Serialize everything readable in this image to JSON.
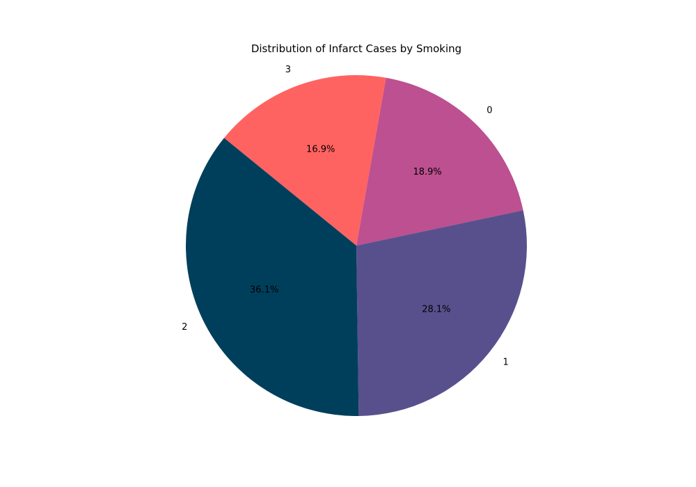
{
  "chart_data": {
    "type": "pie",
    "title": "Distribution of Infarct Cases by Smoking",
    "slices": [
      {
        "label": "0",
        "value": 18.9,
        "pct_label": "18.9%",
        "color": "#bc5090"
      },
      {
        "label": "1",
        "value": 28.1,
        "pct_label": "28.1%",
        "color": "#58508d"
      },
      {
        "label": "2",
        "value": 36.1,
        "pct_label": "36.1%",
        "color": "#003f5c"
      },
      {
        "label": "3",
        "value": 16.9,
        "pct_label": "16.9%",
        "color": "#ff6361"
      }
    ],
    "start_angle_deg": 80,
    "direction": "clockwise"
  }
}
